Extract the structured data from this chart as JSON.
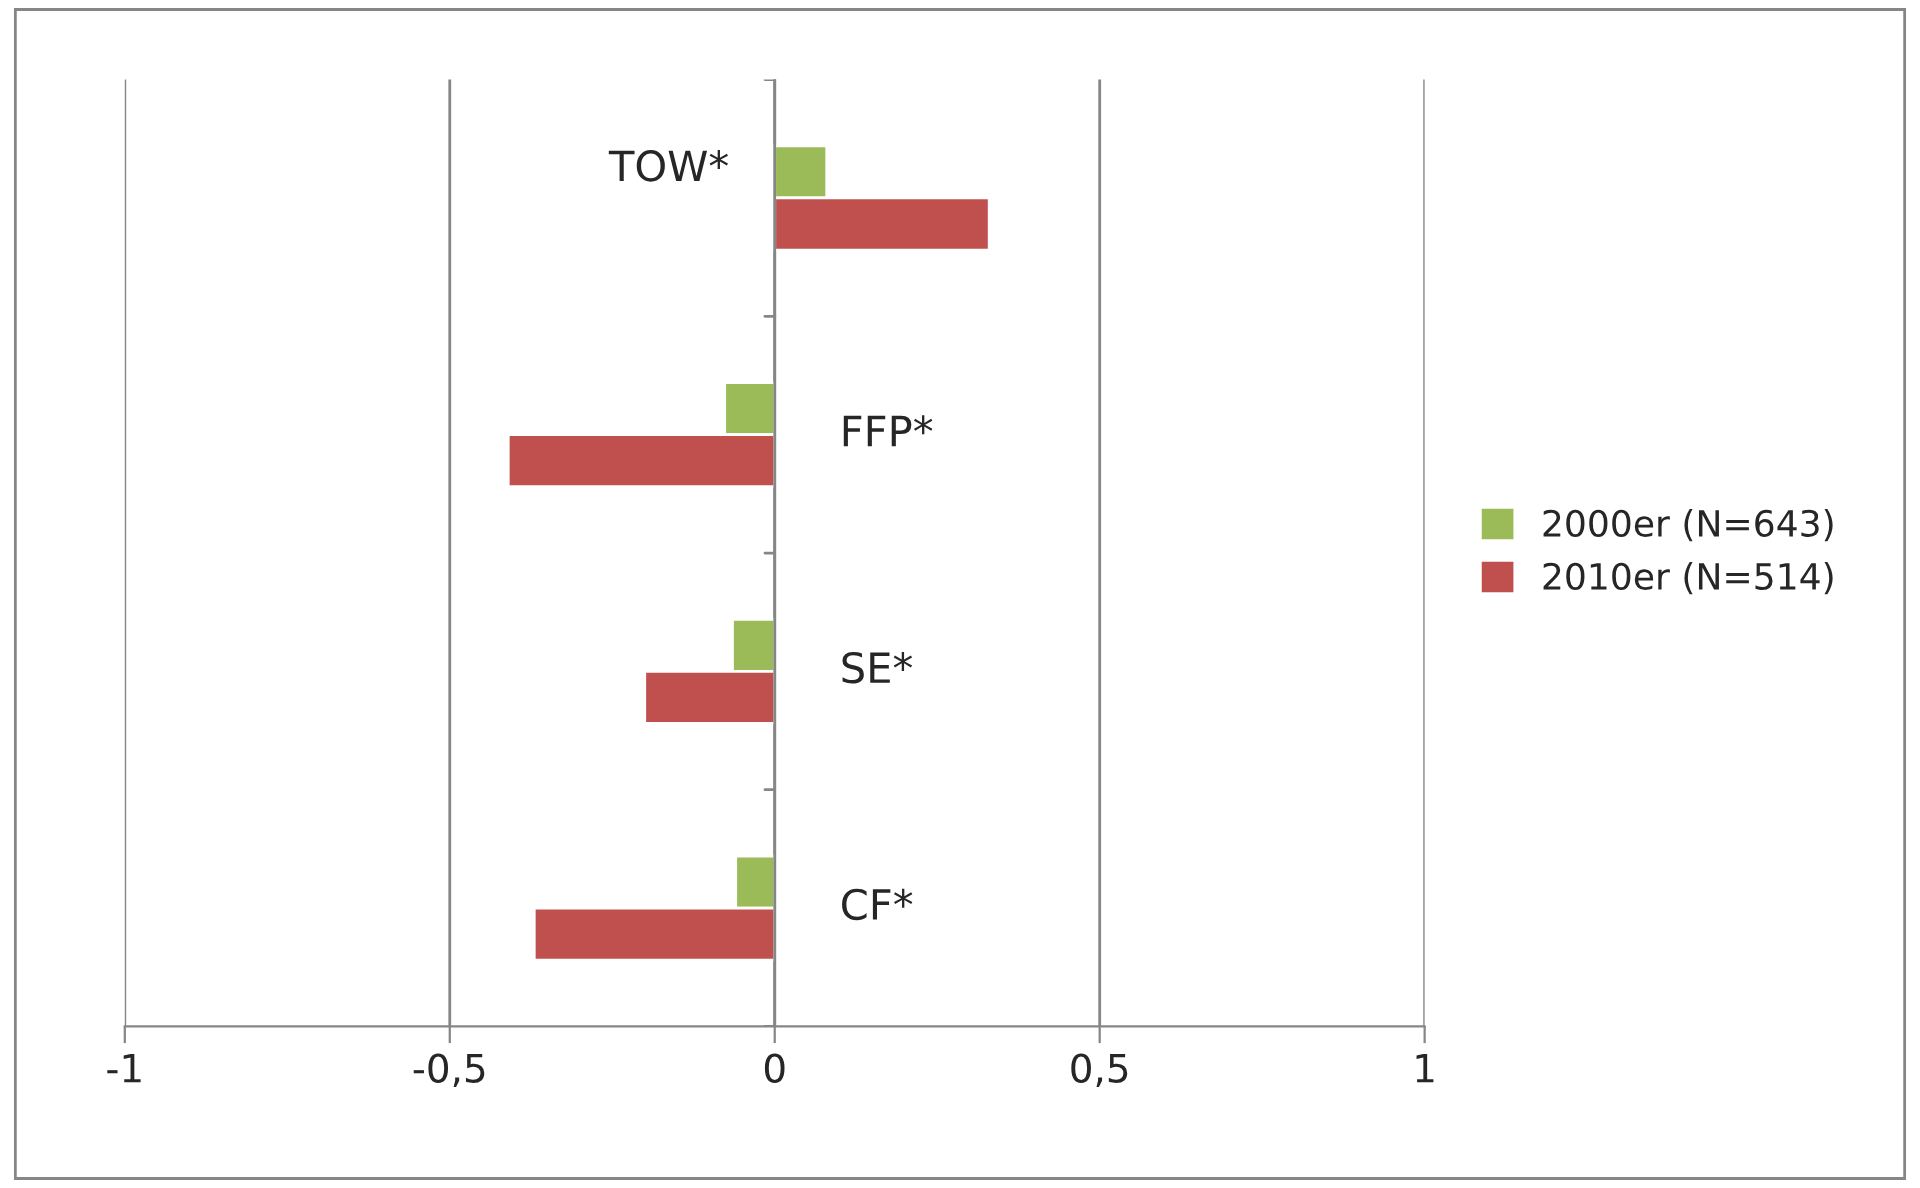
{
  "chart_data": {
    "type": "bar",
    "orientation": "horizontal",
    "categories": [
      "TOW*",
      "FFP*",
      "SE*",
      "CF*"
    ],
    "series": [
      {
        "name": "2000er (N=643)",
        "color": "#9bbb59",
        "values": [
          0.08,
          -0.077,
          -0.065,
          -0.06
        ]
      },
      {
        "name": "2010er (N=514)",
        "color": "#c0504d",
        "values": [
          0.33,
          -0.41,
          -0.2,
          -0.37
        ]
      }
    ],
    "xlim": [
      -1,
      1
    ],
    "xticks": [
      {
        "value": -1,
        "label": "-1"
      },
      {
        "value": -0.5,
        "label": "-0,5"
      },
      {
        "value": 0,
        "label": "0"
      },
      {
        "value": 0.5,
        "label": "0,5"
      },
      {
        "value": 1,
        "label": "1"
      }
    ],
    "grid": "x",
    "legend": "right"
  }
}
